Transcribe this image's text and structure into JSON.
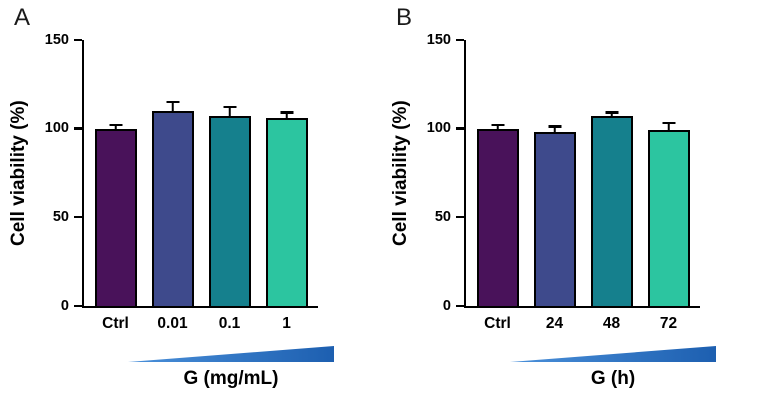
{
  "figure": {
    "background": "#ffffff",
    "axis_color": "#000000",
    "error_bar_color": "#000000",
    "gradient_triangle_colors": [
      "#4a90da",
      "#1d5fb0"
    ]
  },
  "chart_data": [
    {
      "type": "bar",
      "panel": "A",
      "ylabel": "Cell viability (%)",
      "xlabel": "G (mg/mL)",
      "ylim": [
        0,
        150
      ],
      "yticks": [
        0,
        50,
        100,
        150
      ],
      "grid": false,
      "legend": "none",
      "categories": [
        "Ctrl",
        "0.01",
        "0.1",
        "1"
      ],
      "values": [
        100,
        110,
        107,
        106
      ],
      "errors": [
        2,
        5,
        5,
        3
      ],
      "bar_colors": [
        "#49125a",
        "#3e4a8c",
        "#15808d",
        "#2cc5a0"
      ]
    },
    {
      "type": "bar",
      "panel": "B",
      "ylabel": "Cell viability (%)",
      "xlabel": "G (h)",
      "ylim": [
        0,
        150
      ],
      "yticks": [
        0,
        50,
        100,
        150
      ],
      "grid": false,
      "legend": "none",
      "categories": [
        "Ctrl",
        "24",
        "48",
        "72"
      ],
      "values": [
        100,
        98,
        107,
        99
      ],
      "errors": [
        2,
        3,
        2,
        4
      ],
      "bar_colors": [
        "#49125a",
        "#3e4a8c",
        "#15808d",
        "#2cc5a0"
      ]
    }
  ]
}
